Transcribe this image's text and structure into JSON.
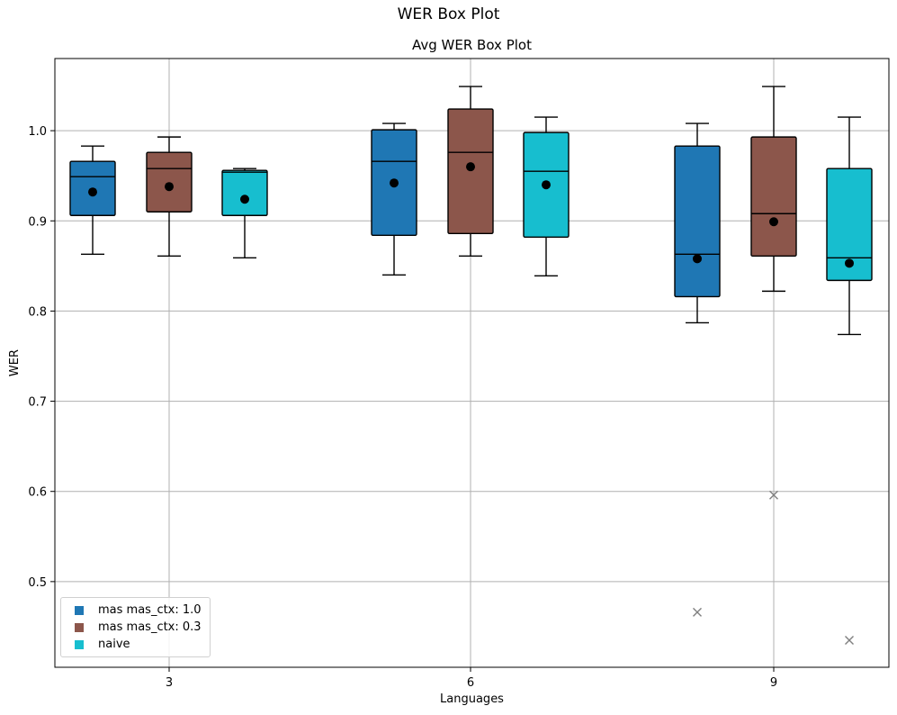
{
  "figure": {
    "suptitle": "WER Box Plot"
  },
  "chart_data": {
    "type": "box",
    "title": "Avg WER Box Plot",
    "xlabel": "Languages",
    "ylabel": "WER",
    "categories": [
      "3",
      "6",
      "9"
    ],
    "ylim": [
      0.405,
      1.08
    ],
    "yticks": [
      0.5,
      0.6,
      0.7,
      0.8,
      0.9,
      1.0
    ],
    "ytick_labels": [
      "0.5",
      "0.6",
      "0.7",
      "0.8",
      "0.9",
      "1.0"
    ],
    "grid": true,
    "legend_position": "lower-left",
    "series": [
      {
        "name": "mas mas_ctx: 1.0",
        "color": "#1f77b4",
        "boxes": [
          {
            "category": "3",
            "whisker_low": 0.863,
            "q1": 0.906,
            "median": 0.949,
            "q3": 0.966,
            "whisker_high": 0.983,
            "mean": 0.932,
            "outliers": []
          },
          {
            "category": "6",
            "whisker_low": 0.84,
            "q1": 0.884,
            "median": 0.966,
            "q3": 1.001,
            "whisker_high": 1.008,
            "mean": 0.942,
            "outliers": []
          },
          {
            "category": "9",
            "whisker_low": 0.787,
            "q1": 0.816,
            "median": 0.863,
            "q3": 0.983,
            "whisker_high": 1.008,
            "mean": 0.858,
            "outliers": [
              0.466
            ]
          }
        ]
      },
      {
        "name": "mas mas_ctx: 0.3",
        "color": "#8c564b",
        "boxes": [
          {
            "category": "3",
            "whisker_low": 0.861,
            "q1": 0.91,
            "median": 0.958,
            "q3": 0.976,
            "whisker_high": 0.993,
            "mean": 0.938,
            "outliers": []
          },
          {
            "category": "6",
            "whisker_low": 0.861,
            "q1": 0.886,
            "median": 0.976,
            "q3": 1.024,
            "whisker_high": 1.049,
            "mean": 0.96,
            "outliers": []
          },
          {
            "category": "9",
            "whisker_low": 0.822,
            "q1": 0.861,
            "median": 0.908,
            "q3": 0.993,
            "whisker_high": 1.049,
            "mean": 0.899,
            "outliers": [
              0.596
            ]
          }
        ]
      },
      {
        "name": "naive",
        "color": "#17becf",
        "boxes": [
          {
            "category": "3",
            "whisker_low": 0.859,
            "q1": 0.906,
            "median": 0.954,
            "q3": 0.956,
            "whisker_high": 0.958,
            "mean": 0.924,
            "outliers": []
          },
          {
            "category": "6",
            "whisker_low": 0.839,
            "q1": 0.882,
            "median": 0.955,
            "q3": 0.998,
            "whisker_high": 1.015,
            "mean": 0.94,
            "outliers": []
          },
          {
            "category": "9",
            "whisker_low": 0.774,
            "q1": 0.834,
            "median": 0.859,
            "q3": 0.958,
            "whisker_high": 1.015,
            "mean": 0.853,
            "outliers": [
              0.435
            ]
          }
        ]
      }
    ]
  }
}
